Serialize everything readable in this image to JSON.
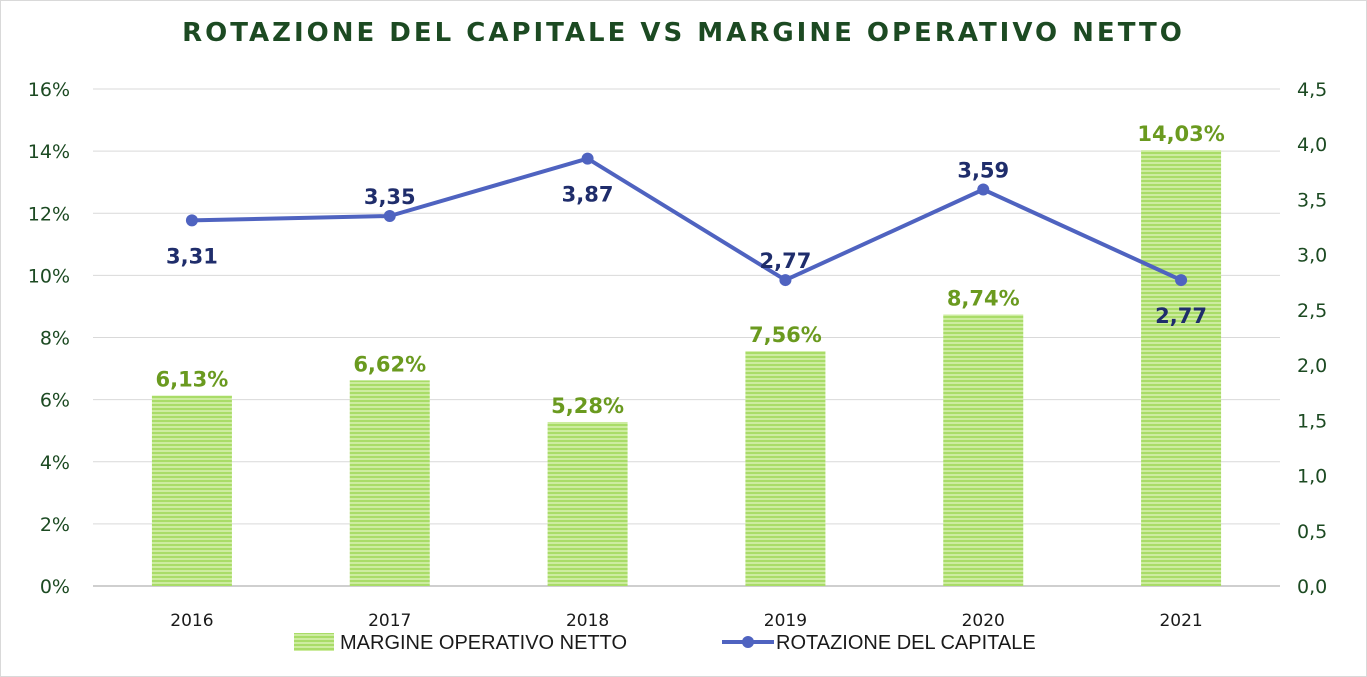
{
  "chart_data": {
    "type": "bar+line",
    "title": "ROTAZIONE DEL CAPITALE VS MARGINE OPERATIVO NETTO",
    "categories": [
      "2016",
      "2017",
      "2018",
      "2019",
      "2020",
      "2021"
    ],
    "series": [
      {
        "name": "MARGINE OPERATIVO  NETTO",
        "type": "bar",
        "axis": "left",
        "values": [
          6.13,
          6.62,
          5.28,
          7.56,
          8.74,
          14.03
        ],
        "labels": [
          "6,13%",
          "6,62%",
          "5,28%",
          "7,56%",
          "8,74%",
          "14,03%"
        ],
        "color": "#9fd45a"
      },
      {
        "name": "ROTAZIONE DEL CAPITALE",
        "type": "line",
        "axis": "right",
        "values": [
          3.31,
          3.35,
          3.87,
          2.77,
          3.59,
          2.77
        ],
        "labels": [
          "3,31",
          "3,35",
          "3,87",
          "2,77",
          "3,59",
          "2,77"
        ],
        "color": "#4f63c0"
      }
    ],
    "y_left": {
      "ylim": [
        0,
        16
      ],
      "ticks": [
        "0%",
        "2%",
        "4%",
        "6%",
        "8%",
        "10%",
        "12%",
        "14%",
        "16%"
      ]
    },
    "y_right": {
      "ylim": [
        0,
        4.5
      ],
      "ticks": [
        "0,0",
        "0,5",
        "1,0",
        "1,5",
        "2,0",
        "2,5",
        "3,0",
        "3,5",
        "4,0",
        "4,5"
      ]
    },
    "grid": true,
    "legend_position": "bottom"
  }
}
